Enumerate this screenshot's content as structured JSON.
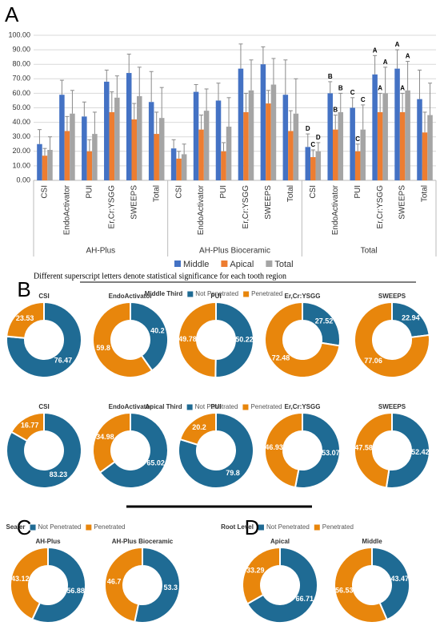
{
  "chart_data": [
    {
      "type": "bar",
      "panel": "A",
      "note": "Different superscript letters denote statistical significance for each tooth region",
      "groups": [
        "AH-Plus",
        "AH-Plus Bioceramic",
        "Total"
      ],
      "categories": [
        "CSI",
        "EndoActivator",
        "PUI",
        "Er,Cr:YSGG",
        "SWEEPS",
        "Total",
        "CSI",
        "EndoActivator",
        "PUI",
        "Er,Cr:YSGG",
        "SWEEPS",
        "Total",
        "CSI",
        "EndoActivator",
        "PUI",
        "Er,Cr:YSGG",
        "SWEEPS",
        "Total"
      ],
      "ylim": [
        0,
        100
      ],
      "yticks": [
        {
          "value": 0,
          "label": "0.00"
        },
        {
          "value": 10,
          "label": "10.00"
        },
        {
          "value": 20,
          "label": "20.00"
        },
        {
          "value": 30,
          "label": "30.00"
        },
        {
          "value": 40,
          "label": "40.00"
        },
        {
          "value": 50,
          "label": "50.00"
        },
        {
          "value": 60,
          "label": "60.00"
        },
        {
          "value": 70,
          "label": "70.00"
        },
        {
          "value": 80,
          "label": "80.00"
        },
        {
          "value": 90,
          "label": "90.00"
        },
        {
          "value": 100,
          "label": "100.00"
        }
      ],
      "grid": true,
      "series": [
        {
          "name": "Middle",
          "color": "#4472c4",
          "values": [
            25,
            59,
            44,
            68,
            74,
            54,
            22,
            61,
            55,
            77,
            80,
            59,
            23,
            60,
            50,
            73,
            77,
            56
          ],
          "errors": [
            10,
            10,
            10,
            8,
            13,
            21,
            6,
            5,
            12,
            17,
            12,
            24,
            9,
            8,
            7,
            13,
            13,
            20
          ],
          "letters": [
            null,
            null,
            null,
            null,
            null,
            null,
            null,
            null,
            null,
            null,
            null,
            null,
            "D",
            "B",
            "C",
            "A",
            "A",
            null
          ]
        },
        {
          "name": "Apical",
          "color": "#ed7d31",
          "values": [
            17,
            34,
            20,
            47,
            42,
            32,
            15,
            35,
            20,
            47,
            53,
            34,
            16,
            35,
            20,
            47,
            47,
            33
          ],
          "errors": [
            5,
            10,
            8,
            14,
            11,
            15,
            5,
            10,
            6,
            13,
            9,
            14,
            5,
            10,
            5,
            13,
            13,
            14
          ],
          "letters": [
            null,
            null,
            null,
            null,
            null,
            null,
            null,
            null,
            null,
            null,
            null,
            null,
            "C",
            "B",
            "C",
            "A",
            "A",
            null
          ]
        },
        {
          "name": "Total",
          "color": "#a5a5a5",
          "values": [
            21,
            46,
            32,
            57,
            58,
            43,
            18,
            48,
            37,
            62,
            66,
            46,
            20,
            47,
            35,
            60,
            62,
            45
          ],
          "errors": [
            9,
            16,
            15,
            15,
            20,
            21,
            7,
            15,
            20,
            21,
            18,
            24,
            6,
            13,
            17,
            18,
            20,
            22
          ],
          "letters": [
            null,
            null,
            null,
            null,
            null,
            null,
            null,
            null,
            null,
            null,
            null,
            null,
            "D",
            "B",
            "C",
            "A",
            "A",
            null
          ]
        }
      ]
    },
    {
      "type": "donut",
      "panel": "B",
      "title": "Middle Third",
      "categories": [
        "CSI",
        "EndoActivator",
        "PUI",
        "Er,Cr:YSGG",
        "SWEEPS"
      ],
      "series": [
        {
          "name": "Not Penetrated",
          "color": "#1f6b94",
          "values": [
            76.47,
            40.2,
            50.22,
            27.52,
            22.94
          ]
        },
        {
          "name": "Penetrated",
          "color": "#e8860c",
          "values": [
            23.53,
            59.8,
            49.78,
            72.48,
            77.06
          ]
        }
      ]
    },
    {
      "type": "donut",
      "title": "Apical Third",
      "categories": [
        "CSI",
        "EndoActivator",
        "PUI",
        "Er,Cr:YSGG",
        "SWEEPS"
      ],
      "series": [
        {
          "name": "Not Penetrated",
          "color": "#1f6b94",
          "values": [
            83.23,
            65.02,
            79.8,
            53.07,
            52.42
          ]
        },
        {
          "name": "Penetrated",
          "color": "#e8860c",
          "values": [
            16.77,
            34.98,
            20.2,
            46.93,
            47.58
          ]
        }
      ]
    },
    {
      "type": "donut",
      "panel": "C",
      "title": "Sealer",
      "categories": [
        "AH-Plus",
        "AH-Plus Bioceramic"
      ],
      "series": [
        {
          "name": "Not Penetrated",
          "color": "#1f6b94",
          "values": [
            56.88,
            53.3
          ]
        },
        {
          "name": "Penetrated",
          "color": "#e8860c",
          "values": [
            43.12,
            46.7
          ]
        }
      ]
    },
    {
      "type": "donut",
      "panel": "D",
      "title": "Root Level",
      "categories": [
        "Apical",
        "Middle"
      ],
      "series": [
        {
          "name": "Not Penetrated",
          "color": "#1f6b94",
          "values": [
            66.71,
            43.47
          ]
        },
        {
          "name": "Penetrated",
          "color": "#e8860c",
          "values": [
            33.29,
            56.53
          ]
        }
      ]
    }
  ]
}
